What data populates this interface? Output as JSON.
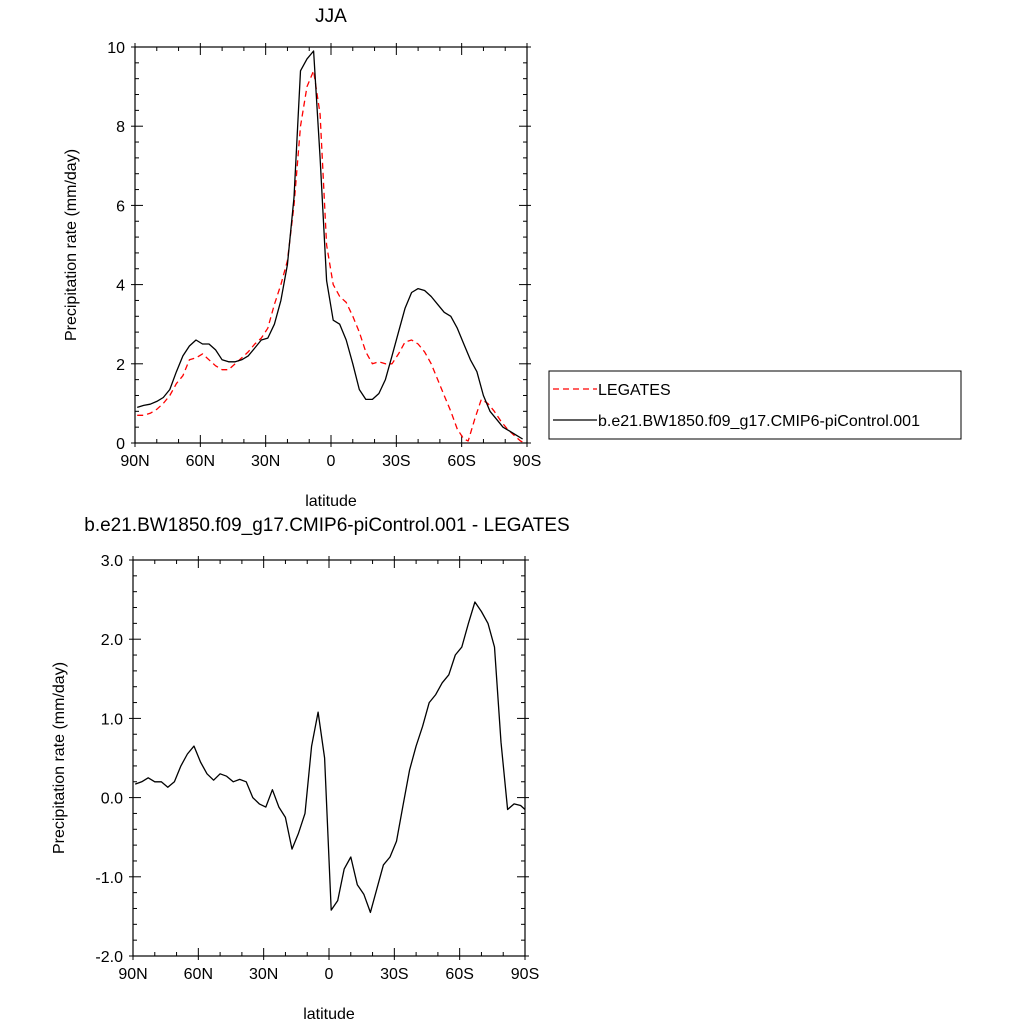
{
  "chart_data": [
    {
      "type": "line",
      "title": "JJA",
      "xlabel": "latitude",
      "ylabel": "Precipitation rate (mm/day)",
      "xlim": [
        90,
        -90
      ],
      "ylim": [
        0,
        10
      ],
      "xticks": [
        90,
        60,
        30,
        0,
        -30,
        -60,
        -90
      ],
      "xtick_labels": [
        "90N",
        "60N",
        "30N",
        "0",
        "30S",
        "60S",
        "90S"
      ],
      "yticks": [
        0,
        2,
        4,
        6,
        8,
        10
      ],
      "ytick_labels": [
        "0",
        "2",
        "4",
        "6",
        "8",
        "10"
      ],
      "legend_position": "right",
      "series": [
        {
          "name": "LEGATES",
          "color": "#ff0000",
          "dash": "dashed",
          "points": [
            [
              89,
              0.7
            ],
            [
              86,
              0.7
            ],
            [
              83,
              0.75
            ],
            [
              80,
              0.85
            ],
            [
              77,
              1.0
            ],
            [
              74,
              1.2
            ],
            [
              71,
              1.5
            ],
            [
              68,
              1.7
            ],
            [
              65,
              2.1
            ],
            [
              62,
              2.15
            ],
            [
              59,
              2.25
            ],
            [
              56,
              2.1
            ],
            [
              53,
              1.95
            ],
            [
              50,
              1.85
            ],
            [
              47,
              1.85
            ],
            [
              44,
              2.0
            ],
            [
              41,
              2.15
            ],
            [
              38,
              2.3
            ],
            [
              35,
              2.5
            ],
            [
              32,
              2.65
            ],
            [
              29,
              2.9
            ],
            [
              26,
              3.5
            ],
            [
              23,
              4.0
            ],
            [
              20,
              4.6
            ],
            [
              17,
              6.0
            ],
            [
              14,
              8.0
            ],
            [
              11,
              9.0
            ],
            [
              8,
              9.4
            ],
            [
              5,
              8.3
            ],
            [
              2,
              5.0
            ],
            [
              -1,
              4.0
            ],
            [
              -4,
              3.7
            ],
            [
              -7,
              3.55
            ],
            [
              -10,
              3.2
            ],
            [
              -13,
              2.8
            ],
            [
              -16,
              2.3
            ],
            [
              -19,
              2.0
            ],
            [
              -22,
              2.05
            ],
            [
              -25,
              2.0
            ],
            [
              -28,
              2.0
            ],
            [
              -31,
              2.25
            ],
            [
              -34,
              2.55
            ],
            [
              -37,
              2.6
            ],
            [
              -40,
              2.5
            ],
            [
              -43,
              2.3
            ],
            [
              -46,
              2.0
            ],
            [
              -49,
              1.6
            ],
            [
              -52,
              1.2
            ],
            [
              -55,
              0.8
            ],
            [
              -58,
              0.35
            ],
            [
              -61,
              0.1
            ],
            [
              -63,
              0.05
            ],
            [
              -66,
              0.6
            ],
            [
              -69,
              1.1
            ],
            [
              -72,
              1.0
            ],
            [
              -75,
              0.8
            ],
            [
              -78,
              0.55
            ],
            [
              -81,
              0.35
            ],
            [
              -84,
              0.2
            ],
            [
              -87,
              0.05
            ],
            [
              -89,
              0.0
            ]
          ]
        },
        {
          "name": "b.e21.BW1850.f09_g17.CMIP6-piControl.001",
          "color": "#000000",
          "dash": "solid",
          "points": [
            [
              89,
              0.9
            ],
            [
              86,
              0.95
            ],
            [
              83,
              0.98
            ],
            [
              80,
              1.05
            ],
            [
              77,
              1.15
            ],
            [
              74,
              1.35
            ],
            [
              71,
              1.8
            ],
            [
              68,
              2.2
            ],
            [
              65,
              2.45
            ],
            [
              62,
              2.6
            ],
            [
              59,
              2.5
            ],
            [
              56,
              2.5
            ],
            [
              53,
              2.35
            ],
            [
              50,
              2.1
            ],
            [
              47,
              2.05
            ],
            [
              44,
              2.05
            ],
            [
              41,
              2.1
            ],
            [
              38,
              2.2
            ],
            [
              35,
              2.4
            ],
            [
              32,
              2.6
            ],
            [
              29,
              2.65
            ],
            [
              26,
              3.0
            ],
            [
              23,
              3.6
            ],
            [
              20,
              4.5
            ],
            [
              17,
              6.2
            ],
            [
              14,
              9.4
            ],
            [
              11,
              9.7
            ],
            [
              8,
              9.9
            ],
            [
              5,
              7.2
            ],
            [
              2,
              4.1
            ],
            [
              -1,
              3.1
            ],
            [
              -4,
              3.0
            ],
            [
              -7,
              2.6
            ],
            [
              -10,
              2.0
            ],
            [
              -13,
              1.35
            ],
            [
              -16,
              1.1
            ],
            [
              -19,
              1.1
            ],
            [
              -22,
              1.25
            ],
            [
              -25,
              1.6
            ],
            [
              -28,
              2.2
            ],
            [
              -31,
              2.8
            ],
            [
              -34,
              3.4
            ],
            [
              -37,
              3.8
            ],
            [
              -40,
              3.9
            ],
            [
              -43,
              3.85
            ],
            [
              -46,
              3.7
            ],
            [
              -49,
              3.5
            ],
            [
              -52,
              3.3
            ],
            [
              -55,
              3.2
            ],
            [
              -58,
              2.9
            ],
            [
              -61,
              2.5
            ],
            [
              -64,
              2.1
            ],
            [
              -67,
              1.8
            ],
            [
              -70,
              1.2
            ],
            [
              -73,
              0.8
            ],
            [
              -76,
              0.6
            ],
            [
              -79,
              0.4
            ],
            [
              -82,
              0.3
            ],
            [
              -85,
              0.2
            ],
            [
              -88,
              0.1
            ]
          ]
        }
      ]
    },
    {
      "type": "line",
      "title": "b.e21.BW1850.f09_g17.CMIP6-piControl.001 - LEGATES",
      "xlabel": "latitude",
      "ylabel": "Precipitation rate (mm/day)",
      "xlim": [
        90,
        -90
      ],
      "ylim": [
        -2,
        3
      ],
      "xticks": [
        90,
        60,
        30,
        0,
        -30,
        -60,
        -90
      ],
      "xtick_labels": [
        "90N",
        "60N",
        "30N",
        "0",
        "30S",
        "60S",
        "90S"
      ],
      "yticks": [
        -2,
        -1,
        0,
        1,
        2,
        3
      ],
      "ytick_labels": [
        "-2.0",
        "-1.0",
        "0.0",
        "1.0",
        "2.0",
        "3.0"
      ],
      "series": [
        {
          "color": "#000000",
          "dash": "solid",
          "points": [
            [
              89,
              0.17
            ],
            [
              86,
              0.2
            ],
            [
              83,
              0.25
            ],
            [
              80,
              0.2
            ],
            [
              77,
              0.2
            ],
            [
              74,
              0.13
            ],
            [
              71,
              0.2
            ],
            [
              68,
              0.4
            ],
            [
              65,
              0.55
            ],
            [
              62,
              0.65
            ],
            [
              59,
              0.45
            ],
            [
              56,
              0.3
            ],
            [
              53,
              0.22
            ],
            [
              50,
              0.3
            ],
            [
              47,
              0.27
            ],
            [
              44,
              0.2
            ],
            [
              41,
              0.23
            ],
            [
              38,
              0.2
            ],
            [
              35,
              0.0
            ],
            [
              32,
              -0.08
            ],
            [
              29,
              -0.12
            ],
            [
              26,
              0.1
            ],
            [
              23,
              -0.12
            ],
            [
              20,
              -0.25
            ],
            [
              17,
              -0.65
            ],
            [
              14,
              -0.45
            ],
            [
              11,
              -0.2
            ],
            [
              8,
              0.65
            ],
            [
              5,
              1.08
            ],
            [
              2,
              0.5
            ],
            [
              -1,
              -1.42
            ],
            [
              -4,
              -1.3
            ],
            [
              -7,
              -0.9
            ],
            [
              -10,
              -0.75
            ],
            [
              -13,
              -1.1
            ],
            [
              -16,
              -1.22
            ],
            [
              -19,
              -1.45
            ],
            [
              -22,
              -1.15
            ],
            [
              -25,
              -0.85
            ],
            [
              -28,
              -0.75
            ],
            [
              -31,
              -0.55
            ],
            [
              -34,
              -0.1
            ],
            [
              -37,
              0.35
            ],
            [
              -40,
              0.65
            ],
            [
              -43,
              0.9
            ],
            [
              -46,
              1.2
            ],
            [
              -49,
              1.3
            ],
            [
              -52,
              1.45
            ],
            [
              -55,
              1.55
            ],
            [
              -58,
              1.8
            ],
            [
              -61,
              1.9
            ],
            [
              -64,
              2.2
            ],
            [
              -67,
              2.47
            ],
            [
              -70,
              2.35
            ],
            [
              -73,
              2.2
            ],
            [
              -76,
              1.9
            ],
            [
              -79,
              0.7
            ],
            [
              -82,
              -0.15
            ],
            [
              -85,
              -0.08
            ],
            [
              -88,
              -0.1
            ],
            [
              -90,
              -0.15
            ]
          ]
        }
      ]
    }
  ]
}
